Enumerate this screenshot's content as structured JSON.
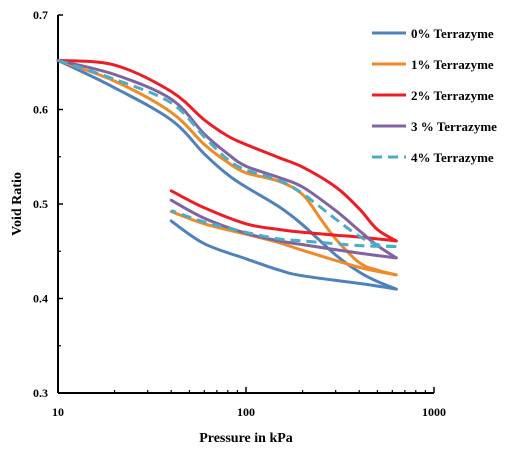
{
  "chart_data": {
    "type": "line",
    "title": "",
    "xlabel": "Pressure  in kPa",
    "ylabel": "Void Ratio",
    "x_scale": "log",
    "xlim": [
      10,
      1000
    ],
    "ylim": [
      0.3,
      0.7
    ],
    "x_ticks": [
      10,
      100,
      1000
    ],
    "x_tick_labels": [
      "10",
      "100",
      "1000"
    ],
    "y_ticks": [
      0.3,
      0.4,
      0.5,
      0.6,
      0.7
    ],
    "y_tick_labels": [
      "0.3",
      "0.4",
      "0.5",
      "0.6",
      "0.7"
    ],
    "grid": false,
    "legend_position": "top-right",
    "series": [
      {
        "name": "0% Terrazyme",
        "color": "#4f81bd",
        "dash": "solid",
        "loading": [
          [
            10,
            0.652
          ],
          [
            20,
            0.623
          ],
          [
            40,
            0.589
          ],
          [
            60,
            0.553
          ],
          [
            80,
            0.531
          ],
          [
            100,
            0.518
          ],
          [
            150,
            0.497
          ],
          [
            200,
            0.478
          ],
          [
            300,
            0.446
          ],
          [
            400,
            0.428
          ],
          [
            500,
            0.418
          ],
          [
            630,
            0.41
          ]
        ],
        "unloading": [
          [
            630,
            0.41
          ],
          [
            400,
            0.416
          ],
          [
            200,
            0.424
          ],
          [
            150,
            0.43
          ],
          [
            100,
            0.442
          ],
          [
            60,
            0.458
          ],
          [
            40,
            0.482
          ]
        ]
      },
      {
        "name": "1%  Terrazyme",
        "color": "#f08a26",
        "dash": "solid",
        "loading": [
          [
            10,
            0.652
          ],
          [
            20,
            0.63
          ],
          [
            40,
            0.597
          ],
          [
            60,
            0.563
          ],
          [
            80,
            0.544
          ],
          [
            100,
            0.533
          ],
          [
            150,
            0.524
          ],
          [
            200,
            0.51
          ],
          [
            250,
            0.484
          ],
          [
            300,
            0.463
          ],
          [
            400,
            0.438
          ],
          [
            500,
            0.43
          ],
          [
            630,
            0.425
          ]
        ],
        "unloading": [
          [
            630,
            0.425
          ],
          [
            400,
            0.433
          ],
          [
            200,
            0.451
          ],
          [
            150,
            0.459
          ],
          [
            100,
            0.468
          ],
          [
            60,
            0.479
          ],
          [
            40,
            0.492
          ]
        ]
      },
      {
        "name": "2% Terrazyme",
        "color": "#ee1c25",
        "dash": "solid",
        "loading": [
          [
            10,
            0.652
          ],
          [
            20,
            0.647
          ],
          [
            40,
            0.619
          ],
          [
            60,
            0.589
          ],
          [
            80,
            0.572
          ],
          [
            100,
            0.563
          ],
          [
            150,
            0.549
          ],
          [
            200,
            0.539
          ],
          [
            300,
            0.518
          ],
          [
            400,
            0.495
          ],
          [
            500,
            0.473
          ],
          [
            630,
            0.461
          ]
        ],
        "unloading": [
          [
            630,
            0.461
          ],
          [
            400,
            0.465
          ],
          [
            300,
            0.467
          ],
          [
            200,
            0.47
          ],
          [
            150,
            0.473
          ],
          [
            100,
            0.479
          ],
          [
            60,
            0.496
          ],
          [
            40,
            0.514
          ]
        ]
      },
      {
        "name": "3 % Terrazyme",
        "color": "#8064a2",
        "dash": "solid",
        "loading": [
          [
            10,
            0.652
          ],
          [
            20,
            0.637
          ],
          [
            40,
            0.611
          ],
          [
            60,
            0.574
          ],
          [
            80,
            0.553
          ],
          [
            100,
            0.54
          ],
          [
            150,
            0.528
          ],
          [
            200,
            0.518
          ],
          [
            300,
            0.493
          ],
          [
            400,
            0.472
          ],
          [
            500,
            0.456
          ],
          [
            630,
            0.443
          ]
        ],
        "unloading": [
          [
            630,
            0.443
          ],
          [
            400,
            0.448
          ],
          [
            200,
            0.457
          ],
          [
            150,
            0.461
          ],
          [
            100,
            0.469
          ],
          [
            60,
            0.485
          ],
          [
            40,
            0.504
          ]
        ]
      },
      {
        "name": "4% Terrazyme",
        "color": "#4bacc6",
        "dash": "dashed",
        "loading": [
          [
            10,
            0.652
          ],
          [
            20,
            0.632
          ],
          [
            40,
            0.607
          ],
          [
            60,
            0.571
          ],
          [
            80,
            0.547
          ],
          [
            100,
            0.536
          ],
          [
            150,
            0.525
          ],
          [
            200,
            0.511
          ],
          [
            300,
            0.484
          ],
          [
            400,
            0.466
          ],
          [
            500,
            0.457
          ],
          [
            630,
            0.455
          ]
        ],
        "unloading": [
          [
            630,
            0.455
          ],
          [
            400,
            0.456
          ],
          [
            200,
            0.461
          ],
          [
            150,
            0.463
          ],
          [
            100,
            0.47
          ],
          [
            60,
            0.481
          ],
          [
            40,
            0.493
          ]
        ]
      }
    ]
  }
}
